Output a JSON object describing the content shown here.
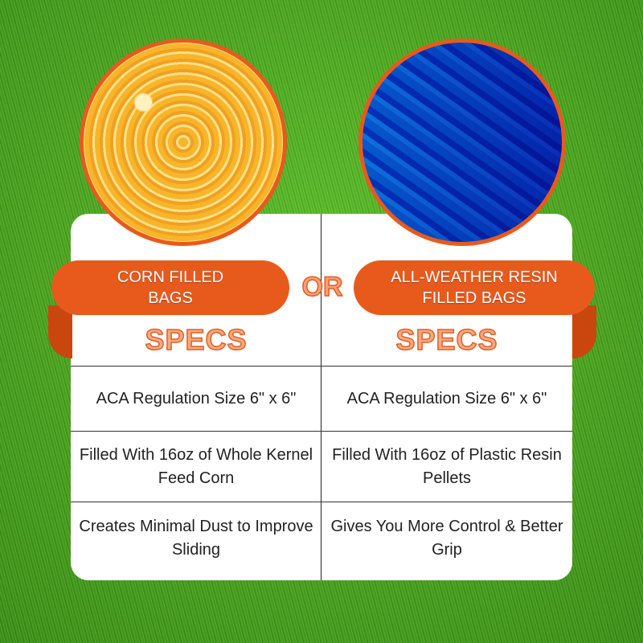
{
  "left": {
    "title": "CORN FILLED BAGS",
    "specs": "SPECS",
    "rows": [
      "ACA Regulation Size 6\" x 6\"",
      "Filled With 16oz of Whole Kernel Feed Corn",
      "Creates Minimal Dust to Improve Sliding"
    ]
  },
  "right": {
    "title": "ALL-WEATHER RESIN FILLED BAGS",
    "specs": "SPECS",
    "rows": [
      "ACA Regulation Size 6\" x 6\"",
      "Filled With 16oz of Plastic Resin Pellets",
      "Gives You More Control & Better Grip"
    ]
  },
  "or_label": "OR",
  "colors": {
    "accent": "#e85a1c",
    "background": "#4aa622"
  }
}
